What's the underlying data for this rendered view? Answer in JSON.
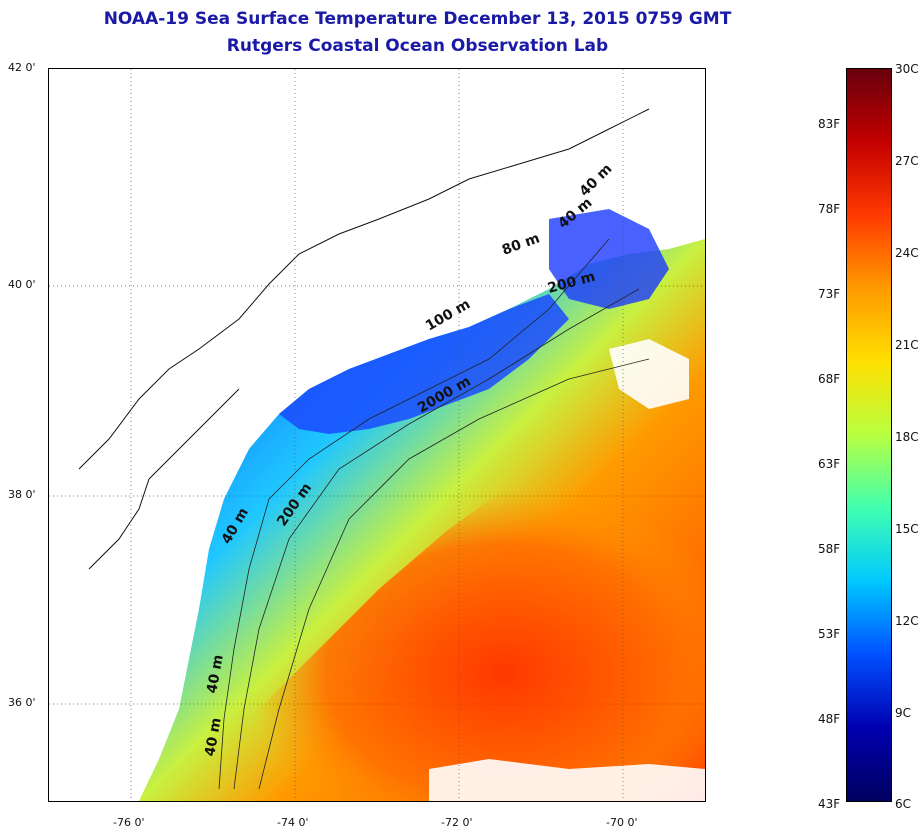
{
  "header": {
    "title": "NOAA-19 Sea Surface Temperature December 13, 2015 0759 GMT",
    "subtitle": "Rutgers Coastal Ocean Observation Lab"
  },
  "map": {
    "lat_labels": [
      "42 0'",
      "40 0'",
      "38 0'",
      "36 0'"
    ],
    "lon_labels": [
      "-76 0'",
      "-74 0'",
      "-72 0'",
      "-70 0'"
    ],
    "contour_labels": [
      "40 m",
      "40 m",
      "80 m",
      "200 m",
      "100 m",
      "2000 m",
      "200 m",
      "40 m",
      "40 m",
      "40 m"
    ]
  },
  "colorbar": {
    "fahrenheit": [
      "83F",
      "78F",
      "73F",
      "68F",
      "63F",
      "58F",
      "53F",
      "48F",
      "43F"
    ],
    "celsius": [
      "30C",
      "27C",
      "24C",
      "21C",
      "18C",
      "15C",
      "12C",
      "9C",
      "6C"
    ],
    "colors": [
      "#67000d",
      "#c40000",
      "#ff3a00",
      "#ff9a00",
      "#ffe000",
      "#b8ff40",
      "#40ffb0",
      "#00c8ff",
      "#0050ff",
      "#0000b0",
      "#000060"
    ]
  }
}
